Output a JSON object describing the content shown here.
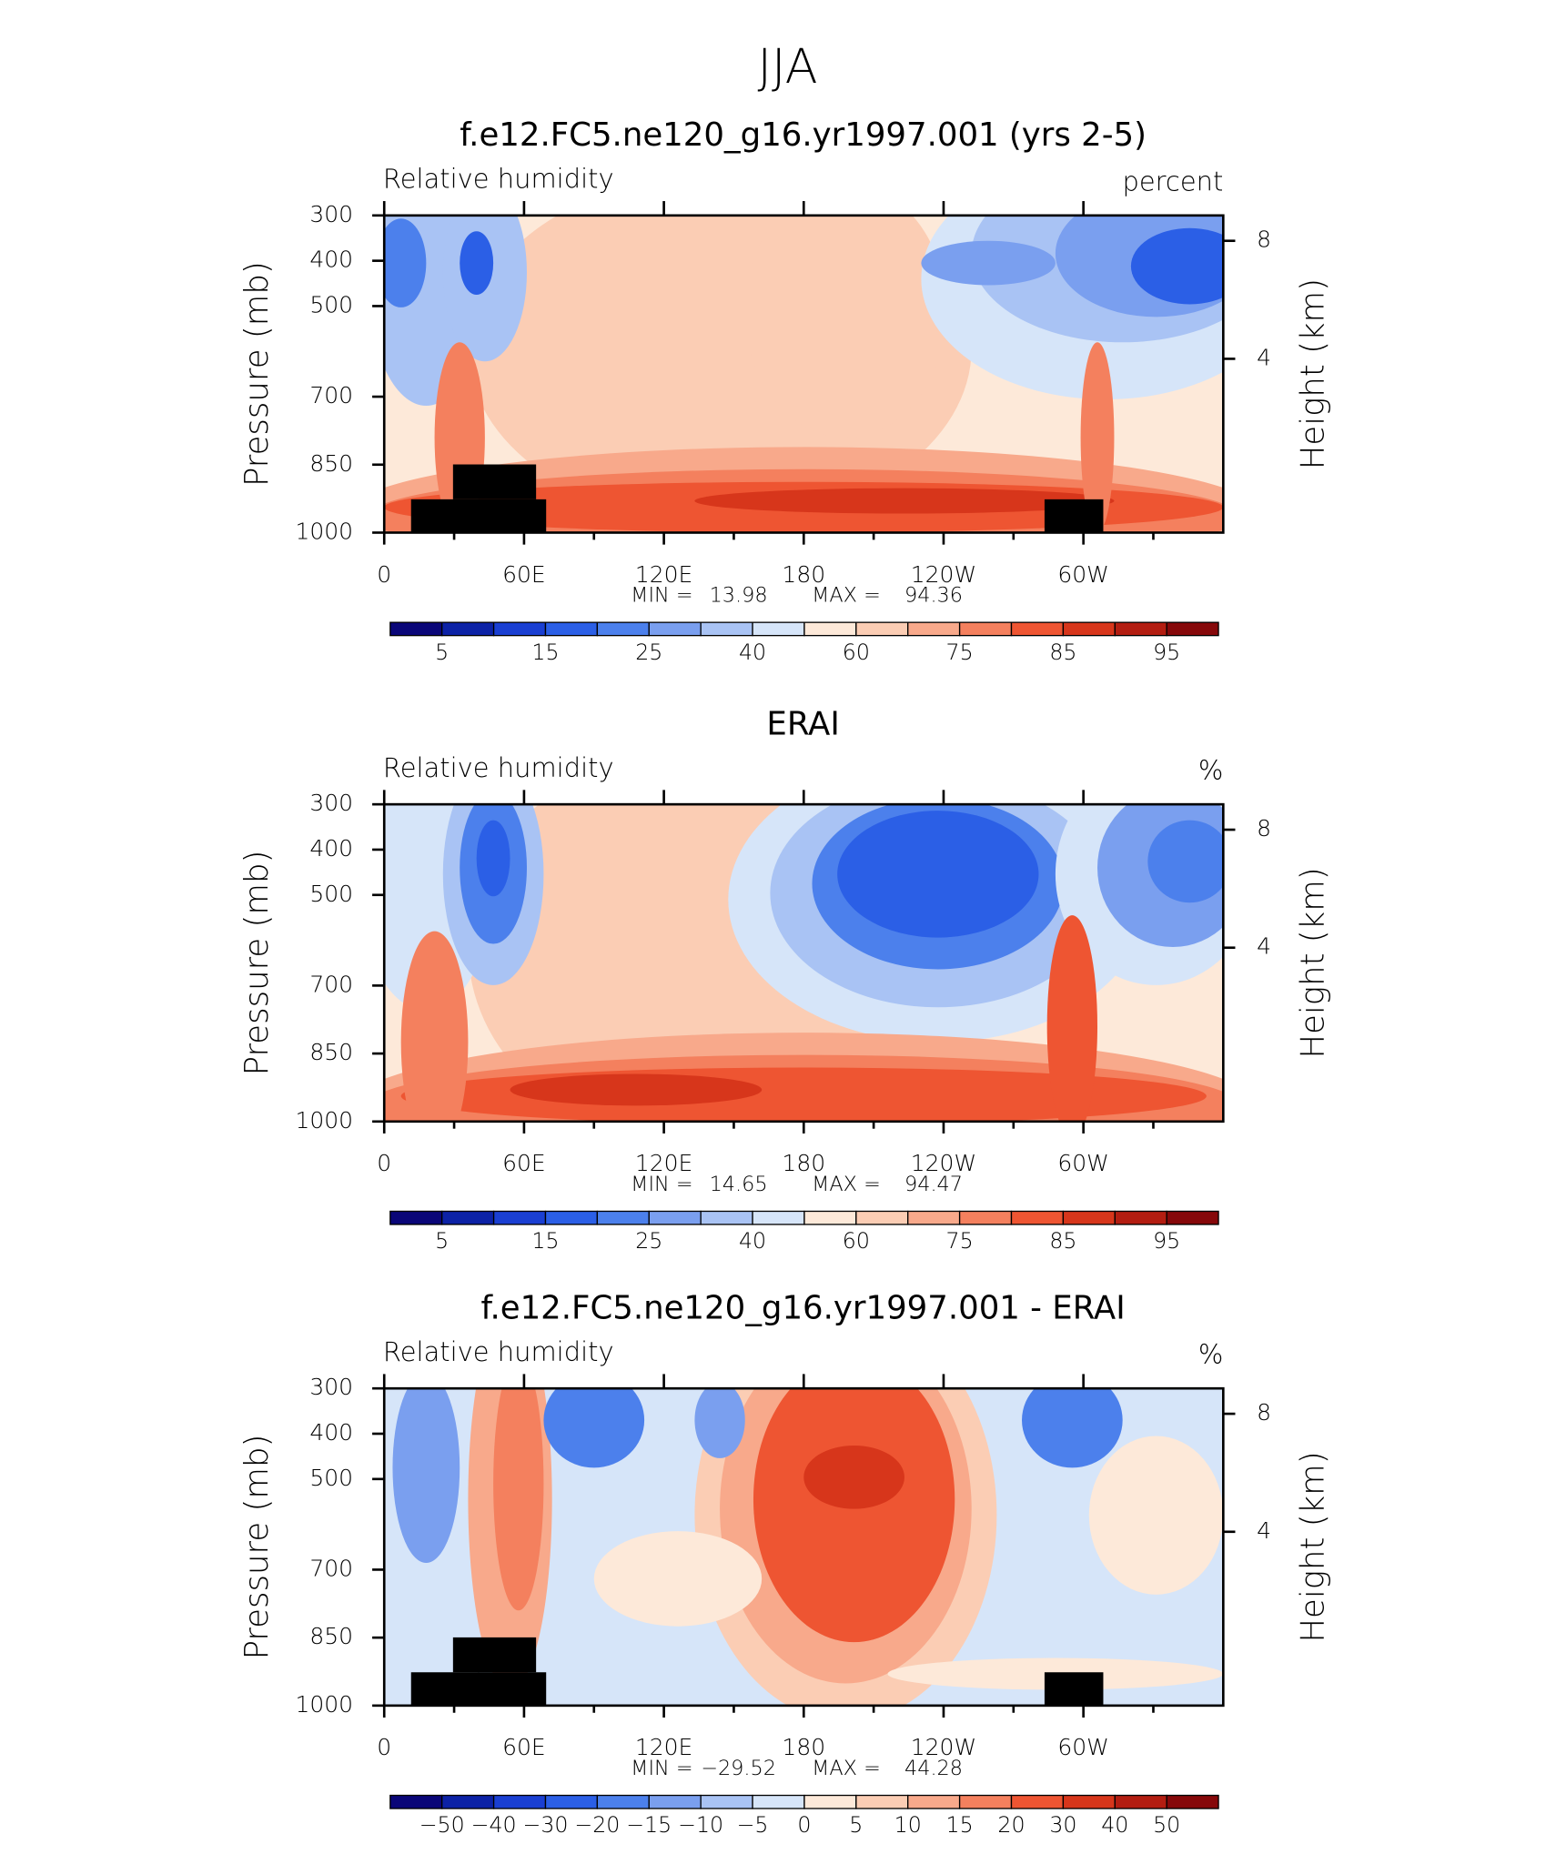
{
  "title": "JJA",
  "chart_data": [
    {
      "type": "contour",
      "title": "f.e12.FC5.ne120_g16.yr1997.001 (yrs 2-5)",
      "left_label": "Relative humidity",
      "right_label": "percent",
      "ylabel": "Pressure (mb)",
      "y2label": "Height (km)",
      "xlim": [
        0,
        360
      ],
      "xticks": [
        0,
        {
          "value": 60,
          "label": "60E"
        },
        {
          "value": 120,
          "label": "120E"
        },
        180,
        {
          "value": 240,
          "label": "120W"
        },
        {
          "value": 300,
          "label": "60W"
        }
      ],
      "ylim": [
        1000,
        300
      ],
      "yticks": [
        300,
        400,
        500,
        700,
        850,
        1000
      ],
      "y2ticks": [
        8,
        4
      ],
      "min_label": "MIN =",
      "min": 13.98,
      "max_label": "MAX =",
      "max": 94.36,
      "colorbar": {
        "colors": [
          "#0a0678",
          "#0c22a6",
          "#1a3fd2",
          "#2b5fe6",
          "#4c80ec",
          "#7a9fef",
          "#a9c3f4",
          "#d6e5f9",
          "#fde9d9",
          "#fbcdb4",
          "#f8a98b",
          "#f4805e",
          "#ee5532",
          "#d7361b",
          "#b31d11",
          "#86080a"
        ],
        "labels": [
          5,
          15,
          25,
          40,
          60,
          75,
          85,
          95
        ]
      }
    },
    {
      "type": "contour",
      "title": "ERAI",
      "left_label": "Relative humidity",
      "right_label": "%",
      "ylabel": "Pressure (mb)",
      "y2label": "Height (km)",
      "xlim": [
        0,
        360
      ],
      "xticks": [
        0,
        {
          "value": 60,
          "label": "60E"
        },
        {
          "value": 120,
          "label": "120E"
        },
        180,
        {
          "value": 240,
          "label": "120W"
        },
        {
          "value": 300,
          "label": "60W"
        }
      ],
      "ylim": [
        1000,
        300
      ],
      "yticks": [
        300,
        400,
        500,
        700,
        850,
        1000
      ],
      "y2ticks": [
        8,
        4
      ],
      "min_label": "MIN =",
      "min": 14.65,
      "max_label": "MAX =",
      "max": 94.47,
      "colorbar": {
        "colors": [
          "#0a0678",
          "#0c22a6",
          "#1a3fd2",
          "#2b5fe6",
          "#4c80ec",
          "#7a9fef",
          "#a9c3f4",
          "#d6e5f9",
          "#fde9d9",
          "#fbcdb4",
          "#f8a98b",
          "#f4805e",
          "#ee5532",
          "#d7361b",
          "#b31d11",
          "#86080a"
        ],
        "labels": [
          5,
          15,
          25,
          40,
          60,
          75,
          85,
          95
        ]
      }
    },
    {
      "type": "contour",
      "title": "f.e12.FC5.ne120_g16.yr1997.001 - ERAI",
      "left_label": "Relative humidity",
      "right_label": "%",
      "ylabel": "Pressure (mb)",
      "y2label": "Height (km)",
      "xlim": [
        0,
        360
      ],
      "xticks": [
        0,
        {
          "value": 60,
          "label": "60E"
        },
        {
          "value": 120,
          "label": "120E"
        },
        180,
        {
          "value": 240,
          "label": "120W"
        },
        {
          "value": 300,
          "label": "60W"
        }
      ],
      "ylim": [
        1000,
        300
      ],
      "yticks": [
        300,
        400,
        500,
        700,
        850,
        1000
      ],
      "y2ticks": [
        8,
        4
      ],
      "min_label": "MIN =",
      "min": {
        "value": -29.52,
        "label": "−29.52"
      },
      "max_label": "MAX =",
      "max": 44.28,
      "colorbar": {
        "colors": [
          "#0a0678",
          "#0c22a6",
          "#1a3fd2",
          "#2b5fe6",
          "#4c80ec",
          "#7a9fef",
          "#a9c3f4",
          "#d6e5f9",
          "#fde9d9",
          "#fbcdb4",
          "#f8a98b",
          "#f4805e",
          "#ee5532",
          "#d7361b",
          "#b31d11",
          "#86080a"
        ],
        "labels": [
          {
            "value": -50,
            "label": "−50"
          },
          {
            "value": -40,
            "label": "−40"
          },
          {
            "value": -30,
            "label": "−30"
          },
          {
            "value": -20,
            "label": "−20"
          },
          {
            "value": -15,
            "label": "−15"
          },
          {
            "value": -10,
            "label": "−10"
          },
          {
            "value": -5,
            "label": "−5"
          },
          0,
          5,
          10,
          15,
          20,
          30,
          40,
          50
        ]
      }
    }
  ]
}
